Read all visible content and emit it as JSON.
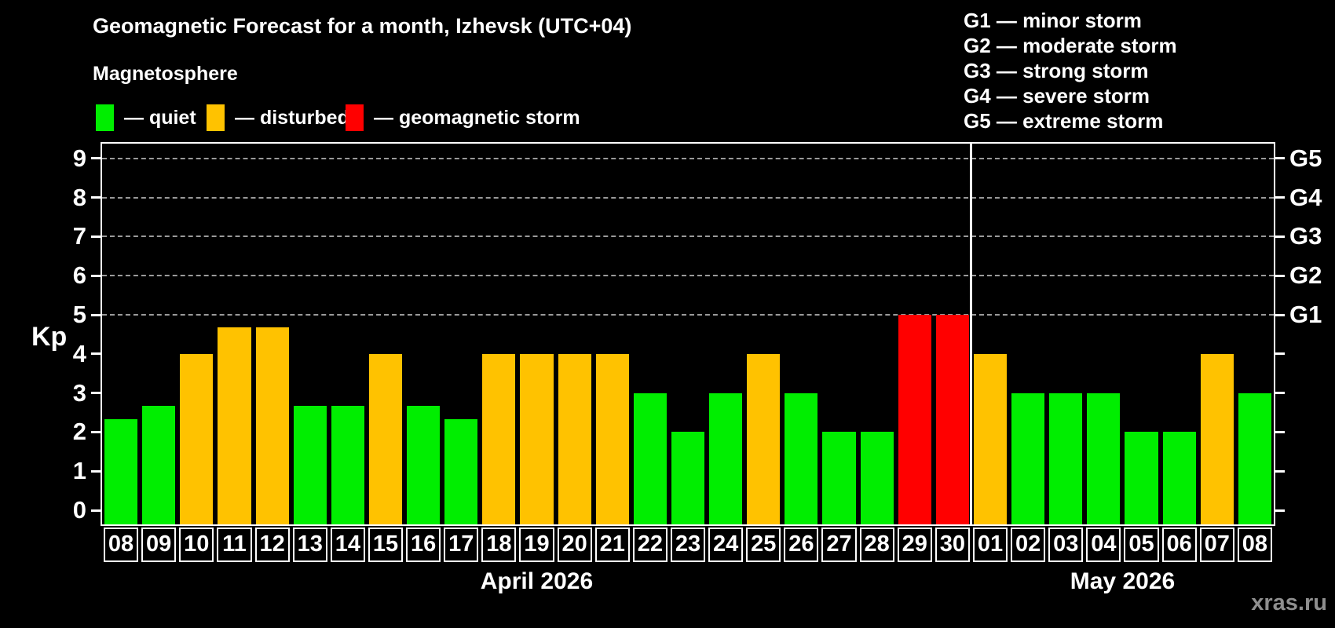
{
  "title": "Geomagnetic Forecast for a month, Izhevsk (UTC+04)",
  "subtitle": "Magnetosphere",
  "watermark": "xras.ru",
  "colors": {
    "quiet": "#00ee00",
    "disturbed": "#ffc200",
    "storm": "#ff0000",
    "background": "#000000",
    "axis": "#ffffff",
    "grid": "#9a9a9a",
    "watermark": "#8f8f8f"
  },
  "legend": [
    {
      "key": "quiet",
      "label": "— quiet"
    },
    {
      "key": "disturbed",
      "label": "— disturbed"
    },
    {
      "key": "storm",
      "label": "— geomagnetic storm"
    }
  ],
  "storm_scale_legend": [
    "G1 — minor storm",
    "G2 — moderate storm",
    "G3 — strong storm",
    "G4 — severe storm",
    "G5 — extreme storm"
  ],
  "chart_data": {
    "type": "bar",
    "title": "Geomagnetic Forecast for a month, Izhevsk (UTC+04)",
    "xlabel": "",
    "ylabel": "Kp",
    "ylim": [
      0,
      9
    ],
    "yticks": [
      0,
      1,
      2,
      3,
      4,
      5,
      6,
      7,
      8,
      9
    ],
    "gridline_levels": [
      5,
      6,
      7,
      8,
      9
    ],
    "grid": "dashed",
    "right_axis": [
      {
        "level": 5,
        "label": "G1"
      },
      {
        "level": 6,
        "label": "G2"
      },
      {
        "level": 7,
        "label": "G3"
      },
      {
        "level": 8,
        "label": "G4"
      },
      {
        "level": 9,
        "label": "G5"
      }
    ],
    "months": [
      {
        "label": "April 2026",
        "start_index": 0,
        "count": 23
      },
      {
        "label": "May 2026",
        "start_index": 23,
        "count": 8
      }
    ],
    "bars": [
      {
        "day": "08",
        "value": 2.33,
        "status": "quiet"
      },
      {
        "day": "09",
        "value": 2.67,
        "status": "quiet"
      },
      {
        "day": "10",
        "value": 4,
        "status": "disturbed"
      },
      {
        "day": "11",
        "value": 4.67,
        "status": "disturbed"
      },
      {
        "day": "12",
        "value": 4.67,
        "status": "disturbed"
      },
      {
        "day": "13",
        "value": 2.67,
        "status": "quiet"
      },
      {
        "day": "14",
        "value": 2.67,
        "status": "quiet"
      },
      {
        "day": "15",
        "value": 4,
        "status": "disturbed"
      },
      {
        "day": "16",
        "value": 2.67,
        "status": "quiet"
      },
      {
        "day": "17",
        "value": 2.33,
        "status": "quiet"
      },
      {
        "day": "18",
        "value": 4,
        "status": "disturbed"
      },
      {
        "day": "19",
        "value": 4,
        "status": "disturbed"
      },
      {
        "day": "20",
        "value": 4,
        "status": "disturbed"
      },
      {
        "day": "21",
        "value": 4,
        "status": "disturbed"
      },
      {
        "day": "22",
        "value": 3,
        "status": "quiet"
      },
      {
        "day": "23",
        "value": 2,
        "status": "quiet"
      },
      {
        "day": "24",
        "value": 3,
        "status": "quiet"
      },
      {
        "day": "25",
        "value": 4,
        "status": "disturbed"
      },
      {
        "day": "26",
        "value": 3,
        "status": "quiet"
      },
      {
        "day": "27",
        "value": 2,
        "status": "quiet"
      },
      {
        "day": "28",
        "value": 2,
        "status": "quiet"
      },
      {
        "day": "29",
        "value": 5,
        "status": "storm"
      },
      {
        "day": "30",
        "value": 5,
        "status": "storm"
      },
      {
        "day": "01",
        "value": 4,
        "status": "disturbed"
      },
      {
        "day": "02",
        "value": 3,
        "status": "quiet"
      },
      {
        "day": "03",
        "value": 3,
        "status": "quiet"
      },
      {
        "day": "04",
        "value": 3,
        "status": "quiet"
      },
      {
        "day": "05",
        "value": 2,
        "status": "quiet"
      },
      {
        "day": "06",
        "value": 2,
        "status": "quiet"
      },
      {
        "day": "07",
        "value": 4,
        "status": "disturbed"
      },
      {
        "day": "08",
        "value": 3,
        "status": "quiet"
      }
    ]
  }
}
